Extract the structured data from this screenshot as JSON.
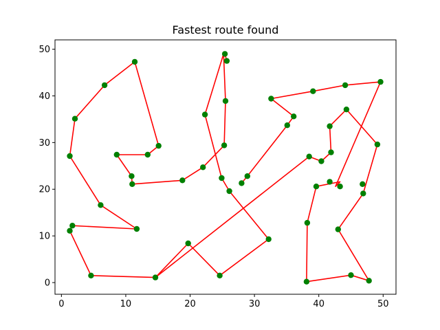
{
  "chart_data": {
    "type": "line",
    "title": "Fastest route found",
    "xlabel": "",
    "ylabel": "",
    "xlim": [
      -1,
      52
    ],
    "ylim": [
      -2.5,
      52
    ],
    "xticks": [
      0,
      10,
      20,
      30,
      40,
      50
    ],
    "yticks": [
      0,
      10,
      20,
      30,
      40,
      50
    ],
    "grid": false,
    "route_color": "#ff0000",
    "point_color": "#008000",
    "series": [
      {
        "x": [
          11.4,
          15.1,
          13.4,
          8.6,
          10.9,
          11.0,
          18.8,
          22.0,
          25.3,
          25.5,
          25.2,
          22.3,
          24.9,
          26.1,
          32.2,
          24.6,
          19.7,
          14.6,
          4.6,
          1.3,
          1.7,
          11.7,
          6.1,
          1.3,
          2.1,
          6.7,
          11.4
        ],
        "y": [
          47.3,
          29.3,
          27.4,
          27.4,
          22.8,
          21.1,
          21.9,
          24.7,
          29.4,
          38.9,
          49.0,
          36.0,
          22.4,
          19.6,
          9.3,
          1.5,
          8.4,
          1.1,
          1.5,
          11.1,
          12.2,
          11.5,
          16.6,
          27.1,
          35.1,
          42.3,
          47.3
        ]
      },
      {
        "x": [
          25.7,
          25.4
        ],
        "y": [
          47.5,
          49.0
        ]
      },
      {
        "x": [
          28.0,
          28.9,
          35.1,
          36.1,
          32.6,
          39.1,
          44.1,
          49.6,
          42.6,
          43.3,
          39.6,
          38.2,
          38.1,
          45.0,
          47.8,
          43.0,
          46.9,
          49.1,
          44.3,
          41.7,
          41.9,
          40.4,
          38.5,
          14.6
        ],
        "y": [
          21.3,
          22.8,
          33.7,
          35.6,
          39.4,
          41.0,
          42.3,
          43.0,
          20.6,
          21.6,
          20.6,
          12.8,
          0.2,
          1.6,
          0.4,
          11.4,
          19.1,
          29.6,
          37.1,
          33.5,
          27.9,
          26.0,
          27.0,
          1.1
        ]
      }
    ],
    "points": {
      "x": [
        11.4,
        15.1,
        13.4,
        8.6,
        10.9,
        11.0,
        18.8,
        22.0,
        25.3,
        25.5,
        25.4,
        25.7,
        22.3,
        24.9,
        26.1,
        28.0,
        28.9,
        35.1,
        36.1,
        32.6,
        39.1,
        44.1,
        49.6,
        43.3,
        41.7,
        39.6,
        38.2,
        38.1,
        45.0,
        47.8,
        43.0,
        46.9,
        46.8,
        49.1,
        44.3,
        41.7,
        41.9,
        40.4,
        38.5,
        32.2,
        24.6,
        19.7,
        14.6,
        4.6,
        1.3,
        1.7,
        11.7,
        6.1,
        1.3,
        2.1,
        6.7
      ],
      "y": [
        47.3,
        29.3,
        27.4,
        27.4,
        22.8,
        21.1,
        21.9,
        24.7,
        29.4,
        38.9,
        49.0,
        47.5,
        36.0,
        22.4,
        19.6,
        21.3,
        22.8,
        33.7,
        35.6,
        39.4,
        41.0,
        42.3,
        43.0,
        20.6,
        21.6,
        20.6,
        12.8,
        0.2,
        1.6,
        0.4,
        11.4,
        19.1,
        21.1,
        29.6,
        37.1,
        33.5,
        27.9,
        26.0,
        27.0,
        9.3,
        1.5,
        8.4,
        1.1,
        1.5,
        11.1,
        12.2,
        11.5,
        16.6,
        27.1,
        35.1,
        42.3
      ]
    }
  }
}
